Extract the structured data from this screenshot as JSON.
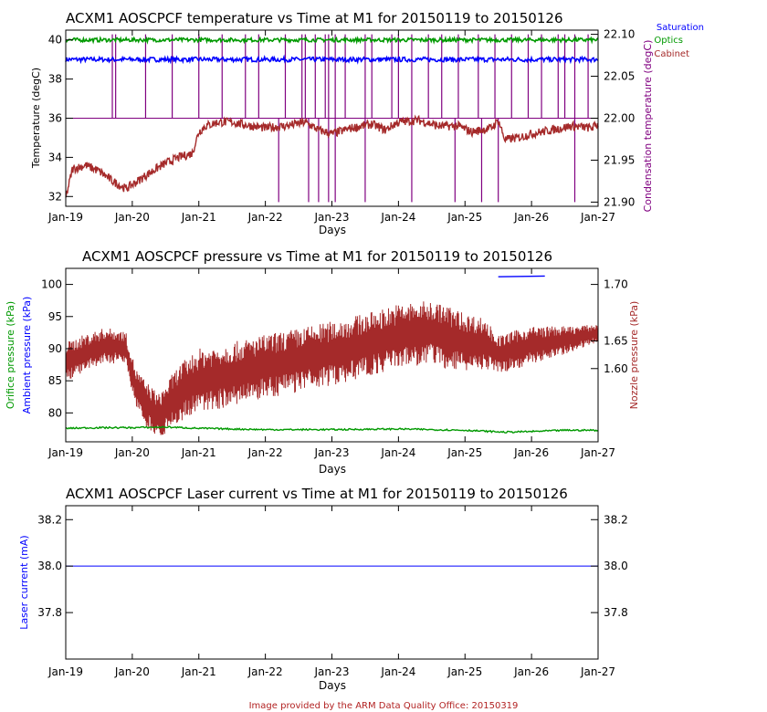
{
  "footer": "Image provided by the ARM Data Quality Office: 20150319",
  "colors": {
    "saturation": "#0000ff",
    "optics": "#009900",
    "cabinet": "#a52a2a",
    "condensation": "#800080",
    "orifice": "#009900",
    "ambient": "#0000ff",
    "nozzle": "#a52a2a",
    "laser": "#0000ff"
  },
  "chart_data": [
    {
      "type": "line",
      "title": "ACXM1 AOSCPCF temperature vs Time at M1 for 20150119 to 20150126",
      "xlabel": "Days",
      "x_ticks": [
        "Jan-19",
        "Jan-20",
        "Jan-21",
        "Jan-22",
        "Jan-23",
        "Jan-24",
        "Jan-25",
        "Jan-26",
        "Jan-27"
      ],
      "ylabel": "Temperature (degC)",
      "ylim": [
        31.5,
        40.5
      ],
      "y_ticks": [
        "32",
        "34",
        "36",
        "38",
        "40"
      ],
      "ylabel_right": "Condensation temperature (degC)",
      "ylim_right": [
        21.895,
        22.105
      ],
      "y_ticks_right": [
        "21.90",
        "21.95",
        "22.00",
        "22.05",
        "22.10"
      ],
      "legend": [
        "Saturation",
        "Optics",
        "Cabinet"
      ],
      "legend_position": "top-right-outside",
      "series": [
        {
          "name": "Saturation",
          "axis": "left",
          "x": [
            19,
            20,
            21,
            22,
            23,
            24,
            25,
            26,
            27
          ],
          "values": [
            39.0,
            39.0,
            39.0,
            39.0,
            39.0,
            39.0,
            39.0,
            39.0,
            39.0
          ]
        },
        {
          "name": "Optics",
          "axis": "left",
          "x": [
            19,
            20,
            21,
            22,
            23,
            24,
            25,
            26,
            27
          ],
          "values": [
            40.0,
            40.0,
            40.0,
            40.0,
            40.0,
            40.0,
            40.0,
            40.0,
            40.0
          ]
        },
        {
          "name": "Cabinet",
          "axis": "left",
          "x": [
            19.0,
            19.1,
            19.3,
            19.5,
            19.7,
            19.9,
            20.0,
            20.3,
            20.5,
            20.7,
            20.9,
            21.0,
            21.1,
            21.3,
            21.5,
            21.8,
            22.0,
            22.3,
            22.6,
            22.8,
            23.0,
            23.3,
            23.6,
            23.8,
            24.0,
            24.3,
            24.6,
            24.9,
            25.1,
            25.4,
            25.5,
            25.6,
            25.8,
            26.0,
            26.3,
            26.6,
            26.9,
            27.0
          ],
          "values": [
            31.9,
            33.4,
            33.6,
            33.3,
            32.8,
            32.4,
            32.6,
            33.3,
            33.7,
            34.0,
            34.2,
            35.3,
            35.6,
            35.8,
            35.8,
            35.6,
            35.5,
            35.6,
            35.8,
            35.4,
            35.2,
            35.5,
            35.7,
            35.4,
            35.8,
            35.9,
            35.6,
            35.6,
            35.3,
            35.5,
            35.9,
            34.9,
            35.0,
            35.2,
            35.4,
            35.6,
            35.5,
            35.7
          ]
        },
        {
          "name": "Condensation",
          "axis": "right",
          "x": [
            19,
            27
          ],
          "values": [
            22.0,
            22.0
          ],
          "spikes_up_x": [
            19.7,
            19.75,
            20.2,
            20.6,
            21.0,
            21.35,
            21.7,
            21.9,
            22.3,
            22.55,
            22.6,
            22.75,
            22.9,
            22.95,
            23.05,
            23.2,
            23.5,
            23.6,
            23.9,
            24.0,
            24.2,
            24.45,
            24.65,
            24.9,
            25.2,
            25.45,
            25.7,
            25.95,
            26.15,
            26.4,
            26.5,
            26.65,
            26.85
          ],
          "spikes_down_x": [
            22.2,
            22.65,
            22.8,
            22.95,
            23.05,
            23.5,
            24.2,
            24.85,
            25.25,
            25.5,
            26.65
          ]
        }
      ]
    },
    {
      "type": "line",
      "title": "ACXM1 AOSCPCF pressure vs Time at M1 for 20150119 to 20150126",
      "xlabel": "Days",
      "x_ticks": [
        "Jan-19",
        "Jan-20",
        "Jan-21",
        "Jan-22",
        "Jan-23",
        "Jan-24",
        "Jan-25",
        "Jan-26",
        "Jan-27"
      ],
      "ylabel": "Ambient pressure (kPa)",
      "ylabel_2": "Orifice pressure (kPa)",
      "ylim": [
        75.5,
        102.5
      ],
      "y_ticks": [
        "80",
        "85",
        "90",
        "95",
        "100"
      ],
      "ylabel_right": "Nozzle pressure (kPa)",
      "y_ticks_right": [
        "1.60",
        "1.65",
        "1.70"
      ],
      "grid": false,
      "series": [
        {
          "name": "Ambient pressure",
          "axis": "left",
          "x": [
            25.5,
            26.2
          ],
          "values": [
            101.2,
            101.3
          ]
        },
        {
          "name": "Orifice pressure",
          "axis": "left",
          "x": [
            19.0,
            19.5,
            20.0,
            20.5,
            21.0,
            22.0,
            23.0,
            24.0,
            25.0,
            25.6,
            26.0,
            26.5,
            27.0
          ],
          "values": [
            77.6,
            77.7,
            77.7,
            77.8,
            77.6,
            77.4,
            77.4,
            77.5,
            77.3,
            77.0,
            77.1,
            77.3,
            77.3
          ]
        },
        {
          "name": "Nozzle pressure",
          "axis": "left",
          "x": [
            19.0,
            19.3,
            19.6,
            19.9,
            20.05,
            20.2,
            20.4,
            20.7,
            21.0,
            21.5,
            22.0,
            22.5,
            23.0,
            23.5,
            24.0,
            24.5,
            24.8,
            25.0,
            25.3,
            25.5,
            25.8,
            26.0,
            26.3,
            26.6,
            26.9,
            27.0
          ],
          "values": [
            88.0,
            89.3,
            90.5,
            90.2,
            84.0,
            81.5,
            79.5,
            83.0,
            85.0,
            86.0,
            87.2,
            88.2,
            89.3,
            90.5,
            92.0,
            92.5,
            91.5,
            91.0,
            90.8,
            89.0,
            90.0,
            90.5,
            91.0,
            91.5,
            92.2,
            92.5
          ],
          "band": [
            3.0,
            3.0,
            2.8,
            2.5,
            3.0,
            3.5,
            3.5,
            4.5,
            5.0,
            5.0,
            5.0,
            5.0,
            5.0,
            5.0,
            5.0,
            5.0,
            5.0,
            4.5,
            4.0,
            3.0,
            3.0,
            3.0,
            2.5,
            2.0,
            1.5,
            1.5
          ]
        }
      ]
    },
    {
      "type": "line",
      "title": "ACXM1 AOSCPCF Laser current vs Time at M1 for 20150119 to 20150126",
      "xlabel": "Days",
      "x_ticks": [
        "Jan-19",
        "Jan-20",
        "Jan-21",
        "Jan-22",
        "Jan-23",
        "Jan-24",
        "Jan-25",
        "Jan-26",
        "Jan-27"
      ],
      "ylabel": "Laser current (mA)",
      "ylim": [
        37.6,
        40.0
      ],
      "y_ticks": [
        "37.8",
        "38.0",
        "38.2"
      ],
      "y_ticks_right": [
        "37.8",
        "38.0",
        "38.2"
      ],
      "series": [
        {
          "name": "Laser current",
          "axis": "left",
          "x": [
            19,
            27
          ],
          "values": [
            38.0,
            38.0
          ]
        }
      ]
    }
  ]
}
